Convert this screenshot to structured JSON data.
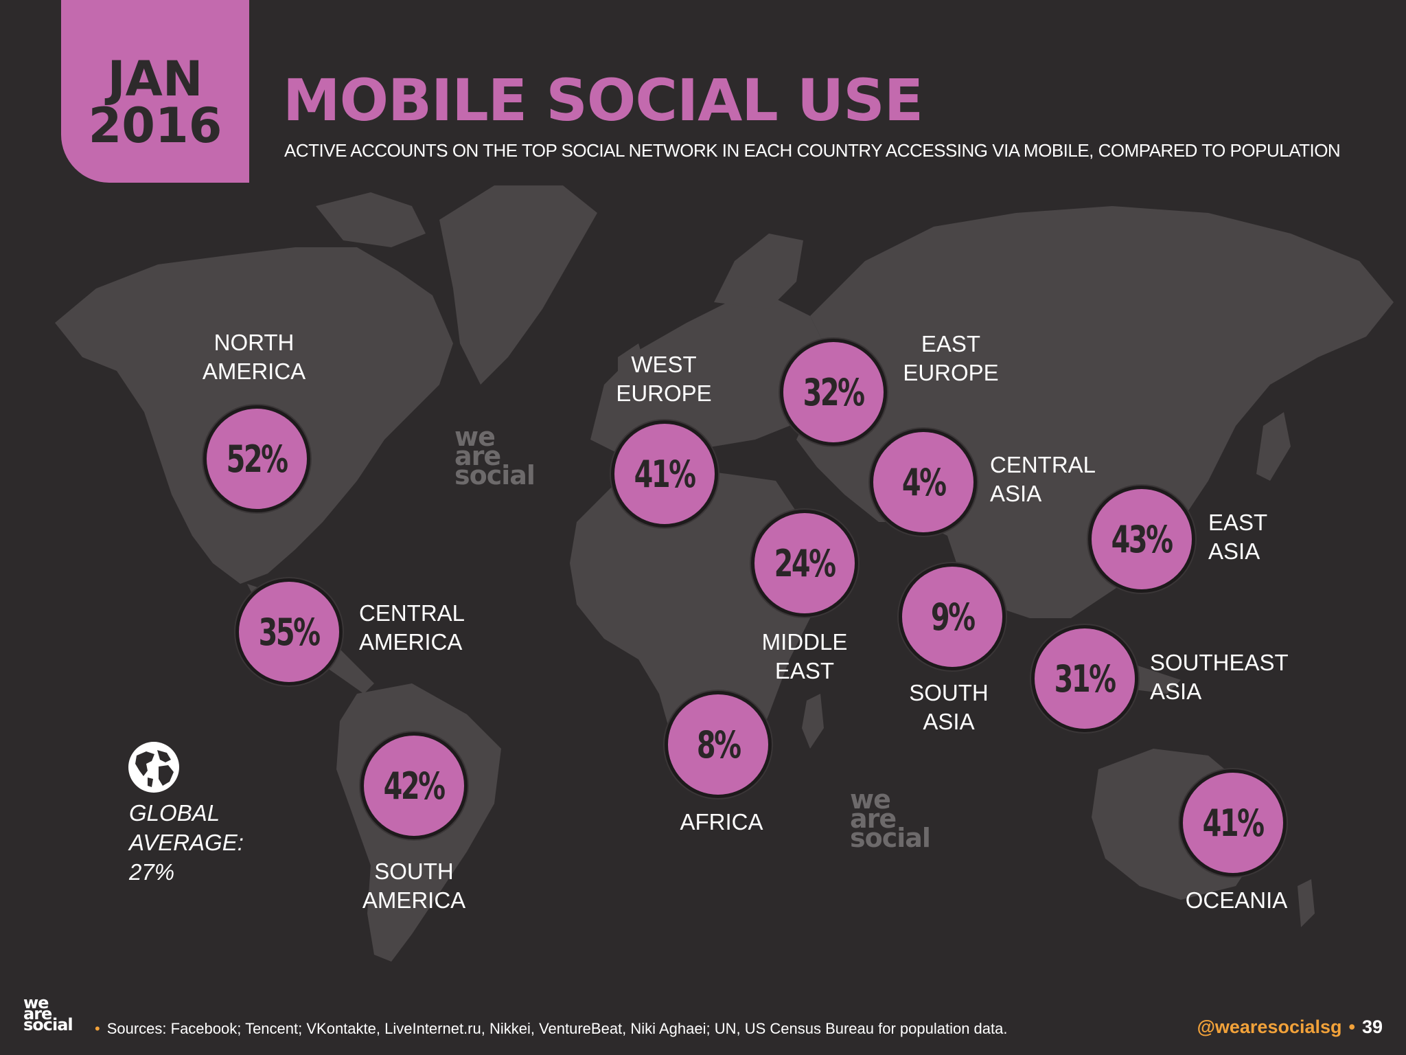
{
  "header": {
    "date_line1": "JAN",
    "date_line2": "2016",
    "title": "MOBILE SOCIAL USE",
    "subtitle": "ACTIVE ACCOUNTS ON THE TOP SOCIAL NETWORK IN EACH COUNTRY ACCESSING VIA MOBILE, COMPARED TO POPULATION"
  },
  "regions": {
    "north_america": {
      "name1": "NORTH",
      "name2": "AMERICA",
      "value": "52%"
    },
    "central_america": {
      "name1": "CENTRAL",
      "name2": "AMERICA",
      "value": "35%"
    },
    "south_america": {
      "name1": "SOUTH",
      "name2": "AMERICA",
      "value": "42%"
    },
    "west_europe": {
      "name1": "WEST",
      "name2": "EUROPE",
      "value": "41%"
    },
    "east_europe": {
      "name1": "EAST",
      "name2": "EUROPE",
      "value": "32%"
    },
    "central_asia": {
      "name1": "CENTRAL",
      "name2": "ASIA",
      "value": "4%"
    },
    "middle_east": {
      "name1": "MIDDLE",
      "name2": "EAST",
      "value": "24%"
    },
    "africa": {
      "name1": "AFRICA",
      "value": "8%"
    },
    "south_asia": {
      "name1": "SOUTH",
      "name2": "ASIA",
      "value": "9%"
    },
    "east_asia": {
      "name1": "EAST",
      "name2": "ASIA",
      "value": "43%"
    },
    "southeast_asia": {
      "name1": "SOUTHEAST",
      "name2": "ASIA",
      "value": "31%"
    },
    "oceania": {
      "name1": "OCEANIA",
      "value": "41%"
    }
  },
  "global_average": {
    "line1": "GLOBAL",
    "line2": "AVERAGE:",
    "value": "27%"
  },
  "watermark": {
    "line1": "we",
    "line2": "are",
    "line3": "social"
  },
  "footer": {
    "logo1": "we",
    "logo2": "are",
    "logo3": "social",
    "sources": "Sources: Facebook; Tencent; VKontakte, LiveInternet.ru, Nikkei, VentureBeat, Niki Aghaei; UN, US Census Bureau for population data.",
    "bullet": "•",
    "handle": "@wearesocialsg",
    "page": "39"
  },
  "colors": {
    "background": "#2d2a2b",
    "accent": "#c36aae",
    "map": "#4a4647",
    "highlight": "#f2a23a"
  },
  "icons": {
    "globe": "globe-icon"
  }
}
